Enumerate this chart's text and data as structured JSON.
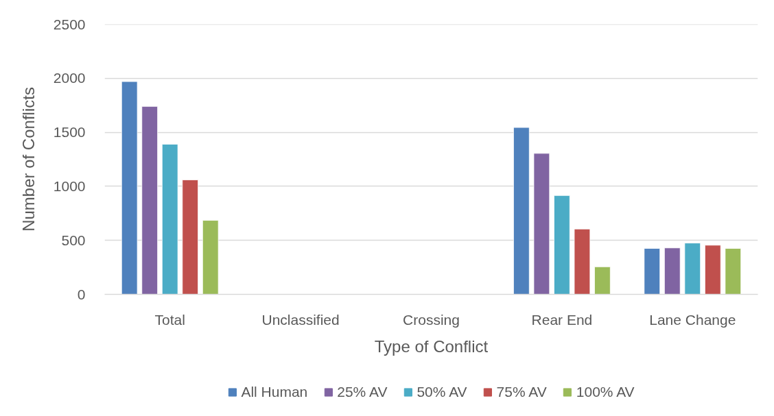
{
  "chart_data": {
    "type": "bar",
    "xlabel": "Type of Conflict",
    "ylabel": "Number of Conflicts",
    "categories": [
      "Total",
      "Unclassified",
      "Crossing",
      "Rear End",
      "Lane Change"
    ],
    "series": [
      {
        "name": "All Human",
        "color": "#4f81bd",
        "values": [
          1970,
          null,
          null,
          1545,
          425
        ]
      },
      {
        "name": "25% AV",
        "color": "#8064a2",
        "values": [
          1740,
          null,
          null,
          1305,
          430
        ]
      },
      {
        "name": "50% AV",
        "color": "#4bacc6",
        "values": [
          1390,
          null,
          null,
          915,
          475
        ]
      },
      {
        "name": "75% AV",
        "color": "#c0504d",
        "values": [
          1060,
          null,
          null,
          605,
          455
        ]
      },
      {
        "name": "100% AV",
        "color": "#9bbb59",
        "values": [
          685,
          null,
          null,
          255,
          425
        ]
      }
    ],
    "ylim": [
      0,
      2500
    ],
    "yticks": [
      0,
      500,
      1000,
      1500,
      2000,
      2500
    ],
    "grid": "y",
    "legend": "bottom"
  }
}
